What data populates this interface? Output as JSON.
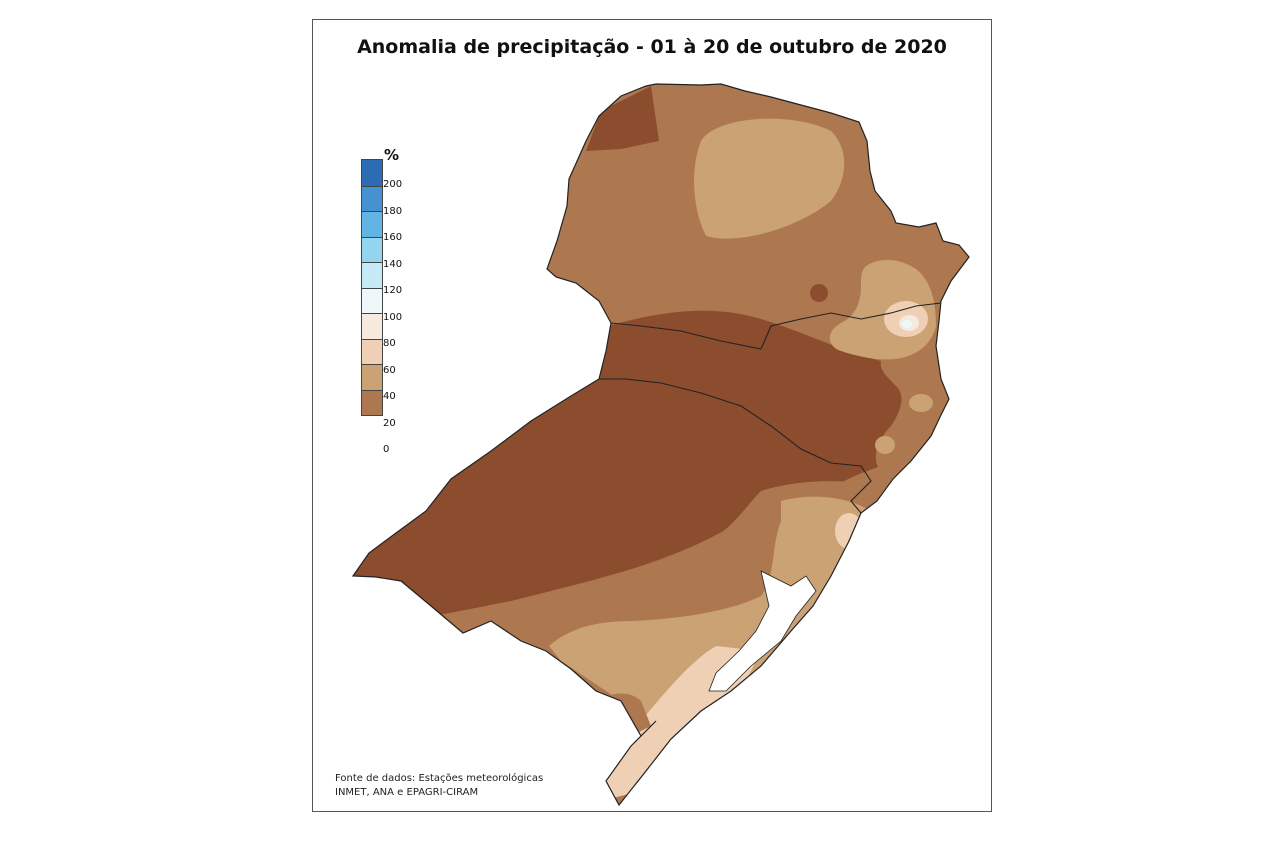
{
  "title": "Anomalia de precipitação - 01 à 20 de outubro de 2020",
  "legend": {
    "unit": "%",
    "ticks": [
      "200",
      "180",
      "160",
      "140",
      "120",
      "100",
      "80",
      "60",
      "40",
      "20",
      "0"
    ],
    "colors": [
      "#2b6cb5",
      "#4591d2",
      "#62b4e4",
      "#93d4ee",
      "#c5e9f5",
      "#eef8fb",
      "#f6e9dd",
      "#f0d0b4",
      "#caa274",
      "#ad774f",
      "#8c4d2e"
    ]
  },
  "source": {
    "line1": "Fonte de dados: Estações meteorológicas",
    "line2": "INMET, ANA e EPAGRI-CIRAM"
  },
  "map_classes": {
    "class_0_20": "#8c4d2e",
    "class_20_40": "#ad774f",
    "class_40_60": "#caa274",
    "class_60_80": "#f0d0b4",
    "class_80_100": "#f6e9dd",
    "class_100_120": "#eef8fb"
  }
}
